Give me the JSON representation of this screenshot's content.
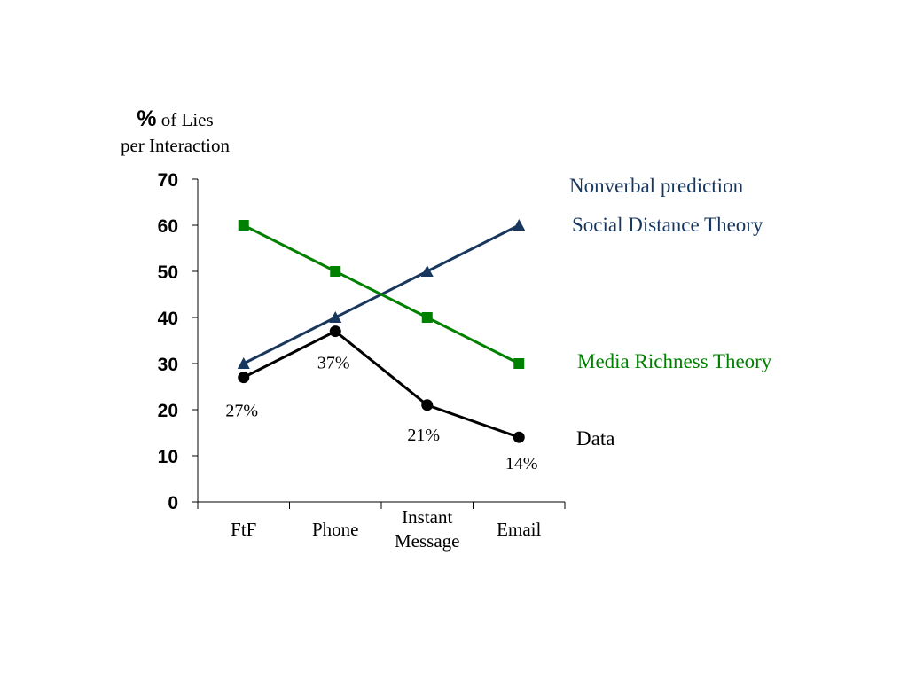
{
  "chart_data": {
    "type": "line",
    "ylabel": {
      "symbol": "%",
      "line1_rest": " of Lies",
      "line2": "per Interaction"
    },
    "categories": [
      "FtF",
      "Phone",
      "Instant Message",
      "Email"
    ],
    "ylim": [
      0,
      70
    ],
    "yticks": [
      0,
      10,
      20,
      30,
      40,
      50,
      60,
      70
    ],
    "grid": false,
    "legend_heading": "Nonverbal prediction",
    "series": [
      {
        "name": "Social Distance Theory",
        "values": [
          30,
          40,
          50,
          60
        ],
        "color": "#17375e",
        "marker": "triangle"
      },
      {
        "name": "Media Richness Theory",
        "values": [
          60,
          50,
          40,
          30
        ],
        "color": "#008000",
        "marker": "square"
      },
      {
        "name": "Data",
        "values": [
          27,
          37,
          21,
          14
        ],
        "color": "#000000",
        "marker": "circle",
        "data_labels": [
          "27%",
          "37%",
          "21%",
          "14%"
        ]
      }
    ]
  }
}
